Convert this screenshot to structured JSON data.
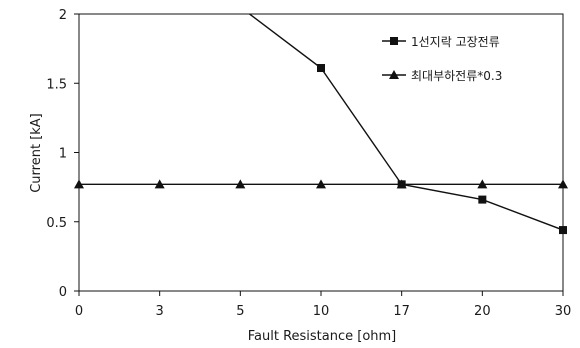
{
  "chart_data": {
    "type": "line",
    "categories": [
      "0",
      "3",
      "5",
      "10",
      "17",
      "20",
      "30"
    ],
    "xlabel": "Fault Resistance [ohm]",
    "ylabel": "Current [kA]",
    "ylim": [
      0,
      2
    ],
    "yticks": [
      "0",
      "0.5",
      "1",
      "1.5",
      "2"
    ],
    "grid": false,
    "legend_position": "top-right",
    "series": [
      {
        "name": "1선지락 고장전류",
        "marker": "square",
        "color": "#111111",
        "values": [
          null,
          null,
          2.05,
          1.61,
          0.77,
          0.66,
          0.44
        ]
      },
      {
        "name": "최대부하전류*0.3",
        "marker": "triangle",
        "color": "#111111",
        "values": [
          0.77,
          0.77,
          0.77,
          0.77,
          0.77,
          0.77,
          0.77
        ]
      }
    ]
  }
}
